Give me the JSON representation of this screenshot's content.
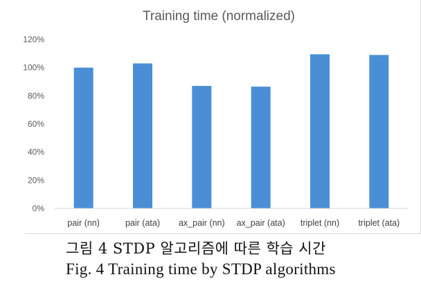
{
  "chart_data": {
    "type": "bar",
    "title": "Training time (normalized)",
    "categories": [
      "pair (nn)",
      "pair (ata)",
      "ax_pair (nn)",
      "ax_pair (ata)",
      "triplet (nn)",
      "triplet (ata)"
    ],
    "values": [
      100,
      103,
      87,
      86.5,
      109.5,
      109
    ],
    "ylim": [
      0,
      120
    ],
    "yticks": [
      0,
      20,
      40,
      60,
      80,
      100,
      120
    ],
    "ytick_labels": [
      "0%",
      "20%",
      "40%",
      "60%",
      "80%",
      "100%",
      "120%"
    ],
    "xlabel": "",
    "ylabel": "",
    "grid": false,
    "legend": "none",
    "bar_color": "#4a8fd6"
  },
  "caption": {
    "korean": "그림 4 STDP 알고리즘에 따른 학습 시간",
    "english": "Fig. 4 Training time by STDP algorithms"
  }
}
